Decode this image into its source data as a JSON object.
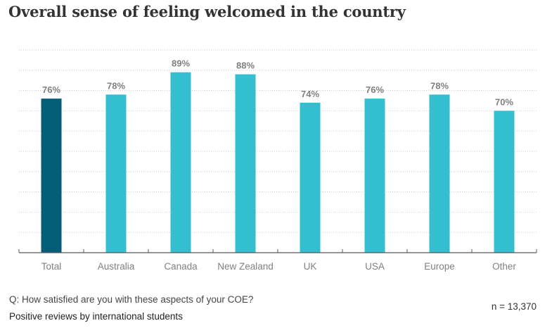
{
  "title": "Overall sense of feeling welcomed in the country",
  "footer": {
    "question": "Q: How satisfied are you with these aspects of your COE?",
    "subtitle": "Positive reviews by international students",
    "n_label": "n = 13,370"
  },
  "colors": {
    "highlight": "#055e77",
    "bar": "#33bfd0",
    "label": "#808080",
    "grid": "#cccccc",
    "axis": "#595959"
  },
  "chart_data": {
    "type": "bar",
    "title": "Overall sense of feeling welcomed in the country",
    "categories": [
      "Total",
      "Australia",
      "Canada",
      "New Zealand",
      "UK",
      "USA",
      "Europe",
      "Other"
    ],
    "values": [
      76,
      78,
      89,
      88,
      74,
      76,
      78,
      70
    ],
    "data_labels": [
      "76%",
      "78%",
      "89%",
      "88%",
      "74%",
      "76%",
      "78%",
      "70%"
    ],
    "highlight_index": 0,
    "xlabel": "",
    "ylabel": "",
    "ylim": [
      0,
      100
    ],
    "grid": true,
    "grid_step": 10
  }
}
